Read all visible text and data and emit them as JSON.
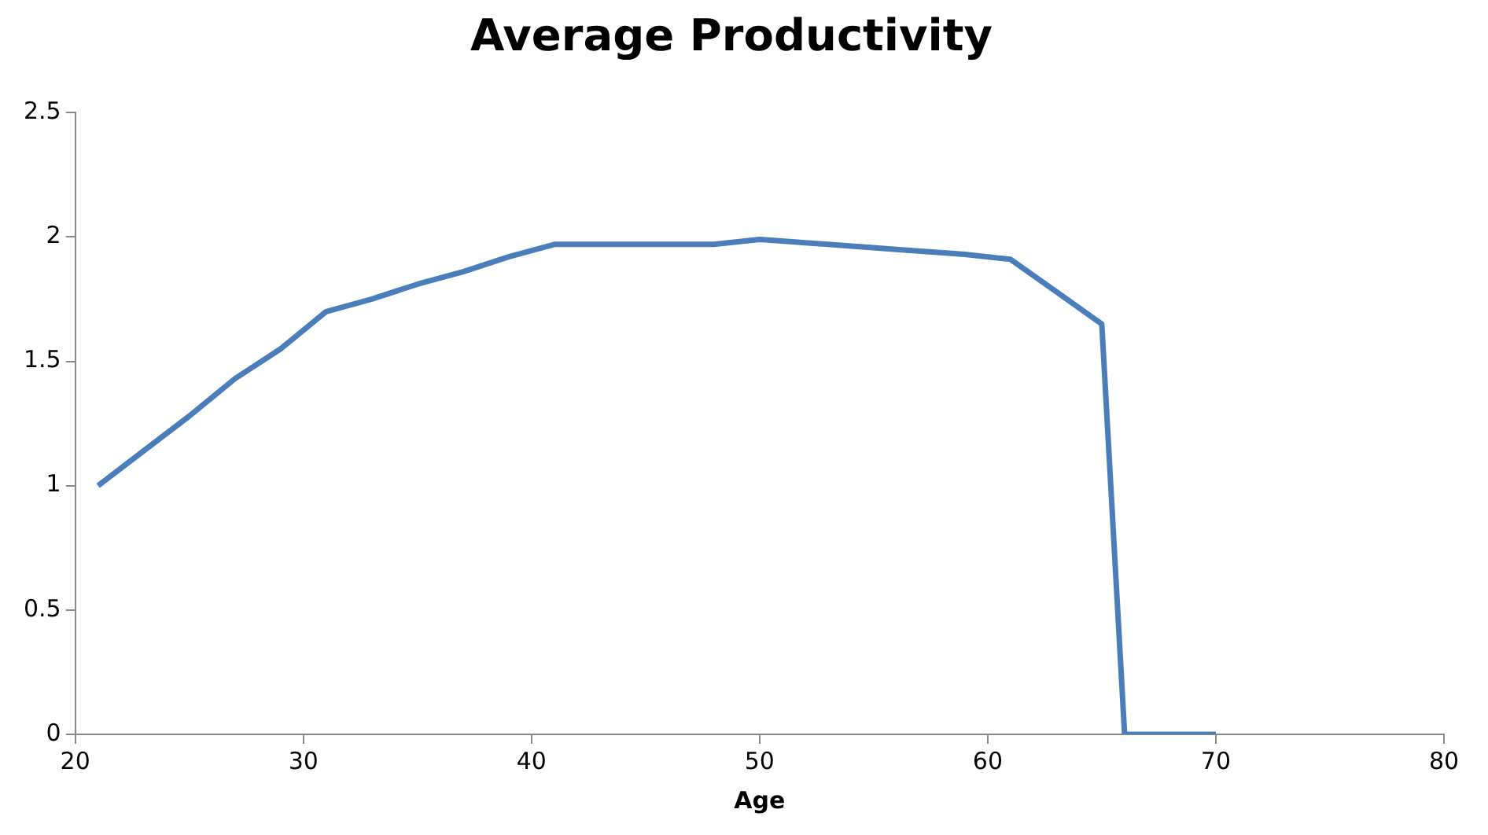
{
  "chart_data": {
    "type": "line",
    "title": "Average Productivity",
    "xlabel": "Age",
    "x": [
      21,
      23,
      25,
      27,
      29,
      31,
      33,
      35,
      37,
      39,
      41,
      45,
      48,
      50,
      53,
      56,
      59,
      61,
      63,
      65,
      66,
      70
    ],
    "series": [
      {
        "color": "#4a7ebb",
        "values": [
          1.0,
          1.14,
          1.28,
          1.43,
          1.55,
          1.7,
          1.75,
          1.81,
          1.86,
          1.92,
          1.97,
          1.97,
          1.97,
          1.99,
          1.97,
          1.95,
          1.93,
          1.91,
          1.78,
          1.65,
          0,
          0
        ]
      }
    ],
    "xlim": [
      20,
      80
    ],
    "xticks": [
      20,
      30,
      40,
      50,
      60,
      70,
      80
    ],
    "ylim": [
      0,
      2.5
    ],
    "yticks": [
      0,
      0.5,
      1,
      1.5,
      2,
      2.5
    ],
    "grid": false,
    "legend": false,
    "marker": "none",
    "line_style": "solid"
  }
}
